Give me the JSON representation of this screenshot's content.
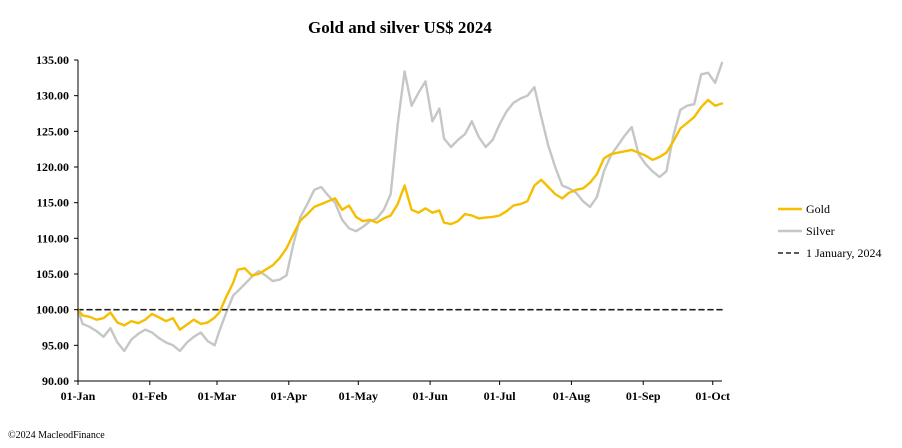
{
  "chart_data": {
    "type": "line",
    "title": "Gold and silver  US$ 2024",
    "xlabel": "",
    "ylabel": "",
    "ylim": [
      90,
      135
    ],
    "yticks": [
      "90.00",
      "95.00",
      "100.00",
      "105.00",
      "110.00",
      "115.00",
      "120.00",
      "125.00",
      "130.00",
      "135.00"
    ],
    "xlim": [
      "2024-01-01",
      "2024-10-05"
    ],
    "xticks": [
      {
        "date": "2024-01-01",
        "label": "01-Jan"
      },
      {
        "date": "2024-02-01",
        "label": "01-Feb"
      },
      {
        "date": "2024-03-01",
        "label": "01-Mar"
      },
      {
        "date": "2024-04-01",
        "label": "01-Apr"
      },
      {
        "date": "2024-05-01",
        "label": "01-May"
      },
      {
        "date": "2024-06-01",
        "label": "01-Jun"
      },
      {
        "date": "2024-07-01",
        "label": "01-Jul"
      },
      {
        "date": "2024-08-01",
        "label": "01-Aug"
      },
      {
        "date": "2024-09-01",
        "label": "01-Sep"
      },
      {
        "date": "2024-10-01",
        "label": "01-Oct"
      }
    ],
    "grid": false,
    "legend_position": "right",
    "series": [
      {
        "name": "Gold",
        "color": "#F6BE00",
        "points": [
          [
            "2024-01-01",
            100.0
          ],
          [
            "2024-01-03",
            99.2
          ],
          [
            "2024-01-06",
            99.0
          ],
          [
            "2024-01-09",
            98.6
          ],
          [
            "2024-01-12",
            98.8
          ],
          [
            "2024-01-15",
            99.6
          ],
          [
            "2024-01-18",
            98.2
          ],
          [
            "2024-01-21",
            97.8
          ],
          [
            "2024-01-24",
            98.4
          ],
          [
            "2024-01-27",
            98.1
          ],
          [
            "2024-01-30",
            98.6
          ],
          [
            "2024-02-02",
            99.4
          ],
          [
            "2024-02-05",
            98.9
          ],
          [
            "2024-02-08",
            98.4
          ],
          [
            "2024-02-11",
            98.8
          ],
          [
            "2024-02-14",
            97.2
          ],
          [
            "2024-02-17",
            97.9
          ],
          [
            "2024-02-20",
            98.6
          ],
          [
            "2024-02-23",
            98.0
          ],
          [
            "2024-02-26",
            98.2
          ],
          [
            "2024-02-29",
            98.9
          ],
          [
            "2024-03-02",
            99.6
          ],
          [
            "2024-03-05",
            101.8
          ],
          [
            "2024-03-08",
            103.8
          ],
          [
            "2024-03-10",
            105.6
          ],
          [
            "2024-03-13",
            105.8
          ],
          [
            "2024-03-16",
            104.8
          ],
          [
            "2024-03-19",
            105.0
          ],
          [
            "2024-03-22",
            105.6
          ],
          [
            "2024-03-25",
            106.2
          ],
          [
            "2024-03-28",
            107.2
          ],
          [
            "2024-03-31",
            108.6
          ],
          [
            "2024-04-03",
            110.6
          ],
          [
            "2024-04-06",
            112.5
          ],
          [
            "2024-04-09",
            113.4
          ],
          [
            "2024-04-12",
            114.4
          ],
          [
            "2024-04-15",
            114.8
          ],
          [
            "2024-04-18",
            115.2
          ],
          [
            "2024-04-21",
            115.6
          ],
          [
            "2024-04-24",
            114.0
          ],
          [
            "2024-04-27",
            114.6
          ],
          [
            "2024-04-30",
            113.0
          ],
          [
            "2024-05-03",
            112.4
          ],
          [
            "2024-05-06",
            112.6
          ],
          [
            "2024-05-09",
            112.2
          ],
          [
            "2024-05-12",
            112.8
          ],
          [
            "2024-05-15",
            113.2
          ],
          [
            "2024-05-18",
            114.8
          ],
          [
            "2024-05-21",
            117.4
          ],
          [
            "2024-05-24",
            114.0
          ],
          [
            "2024-05-27",
            113.6
          ],
          [
            "2024-05-30",
            114.2
          ],
          [
            "2024-06-02",
            113.6
          ],
          [
            "2024-06-05",
            113.9
          ],
          [
            "2024-06-07",
            112.2
          ],
          [
            "2024-06-10",
            112.0
          ],
          [
            "2024-06-13",
            112.4
          ],
          [
            "2024-06-16",
            113.4
          ],
          [
            "2024-06-19",
            113.2
          ],
          [
            "2024-06-22",
            112.8
          ],
          [
            "2024-06-25",
            112.9
          ],
          [
            "2024-06-28",
            113.0
          ],
          [
            "2024-07-01",
            113.2
          ],
          [
            "2024-07-04",
            113.8
          ],
          [
            "2024-07-07",
            114.6
          ],
          [
            "2024-07-10",
            114.8
          ],
          [
            "2024-07-13",
            115.2
          ],
          [
            "2024-07-16",
            117.4
          ],
          [
            "2024-07-19",
            118.2
          ],
          [
            "2024-07-22",
            117.2
          ],
          [
            "2024-07-25",
            116.2
          ],
          [
            "2024-07-28",
            115.6
          ],
          [
            "2024-07-31",
            116.4
          ],
          [
            "2024-08-03",
            116.8
          ],
          [
            "2024-08-06",
            117.0
          ],
          [
            "2024-08-09",
            117.8
          ],
          [
            "2024-08-12",
            119.0
          ],
          [
            "2024-08-15",
            121.2
          ],
          [
            "2024-08-18",
            121.8
          ],
          [
            "2024-08-21",
            122.0
          ],
          [
            "2024-08-24",
            122.2
          ],
          [
            "2024-08-27",
            122.4
          ],
          [
            "2024-08-30",
            122.0
          ],
          [
            "2024-09-02",
            121.6
          ],
          [
            "2024-09-05",
            121.0
          ],
          [
            "2024-09-08",
            121.4
          ],
          [
            "2024-09-11",
            122.0
          ],
          [
            "2024-09-14",
            123.6
          ],
          [
            "2024-09-17",
            125.4
          ],
          [
            "2024-09-20",
            126.2
          ],
          [
            "2024-09-23",
            127.0
          ],
          [
            "2024-09-26",
            128.4
          ],
          [
            "2024-09-29",
            129.4
          ],
          [
            "2024-10-02",
            128.6
          ],
          [
            "2024-10-05",
            128.9
          ]
        ]
      },
      {
        "name": "Silver",
        "color": "#C6C6C6",
        "points": [
          [
            "2024-01-01",
            100.0
          ],
          [
            "2024-01-03",
            98.0
          ],
          [
            "2024-01-06",
            97.6
          ],
          [
            "2024-01-09",
            97.0
          ],
          [
            "2024-01-12",
            96.2
          ],
          [
            "2024-01-15",
            97.4
          ],
          [
            "2024-01-18",
            95.4
          ],
          [
            "2024-01-21",
            94.2
          ],
          [
            "2024-01-24",
            95.8
          ],
          [
            "2024-01-27",
            96.6
          ],
          [
            "2024-01-30",
            97.2
          ],
          [
            "2024-02-02",
            96.8
          ],
          [
            "2024-02-05",
            96.0
          ],
          [
            "2024-02-08",
            95.4
          ],
          [
            "2024-02-11",
            95.0
          ],
          [
            "2024-02-14",
            94.2
          ],
          [
            "2024-02-17",
            95.4
          ],
          [
            "2024-02-20",
            96.2
          ],
          [
            "2024-02-23",
            96.8
          ],
          [
            "2024-02-26",
            95.6
          ],
          [
            "2024-02-29",
            95.0
          ],
          [
            "2024-03-02",
            97.0
          ],
          [
            "2024-03-05",
            99.6
          ],
          [
            "2024-03-08",
            102.0
          ],
          [
            "2024-03-10",
            102.6
          ],
          [
            "2024-03-13",
            103.6
          ],
          [
            "2024-03-16",
            104.6
          ],
          [
            "2024-03-19",
            105.4
          ],
          [
            "2024-03-22",
            104.8
          ],
          [
            "2024-03-25",
            104.0
          ],
          [
            "2024-03-28",
            104.2
          ],
          [
            "2024-03-31",
            104.8
          ],
          [
            "2024-04-03",
            109.2
          ],
          [
            "2024-04-06",
            113.0
          ],
          [
            "2024-04-09",
            114.8
          ],
          [
            "2024-04-12",
            116.8
          ],
          [
            "2024-04-15",
            117.2
          ],
          [
            "2024-04-18",
            116.0
          ],
          [
            "2024-04-21",
            115.0
          ],
          [
            "2024-04-24",
            112.6
          ],
          [
            "2024-04-27",
            111.4
          ],
          [
            "2024-04-30",
            111.0
          ],
          [
            "2024-05-03",
            111.6
          ],
          [
            "2024-05-06",
            112.4
          ],
          [
            "2024-05-09",
            112.8
          ],
          [
            "2024-05-12",
            114.0
          ],
          [
            "2024-05-15",
            116.2
          ],
          [
            "2024-05-18",
            126.0
          ],
          [
            "2024-05-21",
            133.4
          ],
          [
            "2024-05-24",
            128.6
          ],
          [
            "2024-05-27",
            130.4
          ],
          [
            "2024-05-30",
            132.0
          ],
          [
            "2024-06-02",
            126.4
          ],
          [
            "2024-06-05",
            128.2
          ],
          [
            "2024-06-07",
            124.0
          ],
          [
            "2024-06-10",
            122.8
          ],
          [
            "2024-06-13",
            123.8
          ],
          [
            "2024-06-16",
            124.6
          ],
          [
            "2024-06-19",
            126.4
          ],
          [
            "2024-06-22",
            124.2
          ],
          [
            "2024-06-25",
            122.8
          ],
          [
            "2024-06-28",
            123.8
          ],
          [
            "2024-07-01",
            126.0
          ],
          [
            "2024-07-04",
            127.8
          ],
          [
            "2024-07-07",
            129.0
          ],
          [
            "2024-07-10",
            129.6
          ],
          [
            "2024-07-13",
            130.0
          ],
          [
            "2024-07-16",
            131.2
          ],
          [
            "2024-07-19",
            127.0
          ],
          [
            "2024-07-22",
            123.0
          ],
          [
            "2024-07-25",
            120.0
          ],
          [
            "2024-07-28",
            117.4
          ],
          [
            "2024-07-31",
            117.0
          ],
          [
            "2024-08-03",
            116.4
          ],
          [
            "2024-08-06",
            115.2
          ],
          [
            "2024-08-09",
            114.4
          ],
          [
            "2024-08-12",
            115.8
          ],
          [
            "2024-08-15",
            119.4
          ],
          [
            "2024-08-18",
            121.6
          ],
          [
            "2024-08-21",
            123.0
          ],
          [
            "2024-08-24",
            124.4
          ],
          [
            "2024-08-27",
            125.6
          ],
          [
            "2024-08-30",
            121.8
          ],
          [
            "2024-09-02",
            120.4
          ],
          [
            "2024-09-05",
            119.4
          ],
          [
            "2024-09-08",
            118.6
          ],
          [
            "2024-09-11",
            119.4
          ],
          [
            "2024-09-14",
            124.4
          ],
          [
            "2024-09-17",
            128.0
          ],
          [
            "2024-09-20",
            128.6
          ],
          [
            "2024-09-23",
            128.8
          ],
          [
            "2024-09-26",
            133.0
          ],
          [
            "2024-09-29",
            133.2
          ],
          [
            "2024-10-02",
            131.8
          ],
          [
            "2024-10-05",
            134.6
          ]
        ]
      },
      {
        "name": "1 January, 2024",
        "color": "#222222",
        "dashed": true,
        "points": [
          [
            "2024-01-01",
            100.0
          ],
          [
            "2024-10-05",
            100.0
          ]
        ]
      }
    ]
  },
  "footer": {
    "copyright": "©2024 MacleodFinance"
  }
}
